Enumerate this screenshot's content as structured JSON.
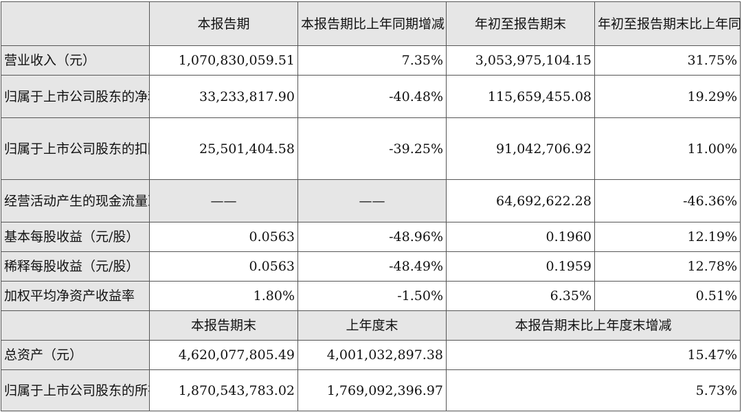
{
  "header": {
    "c0": "",
    "c1": "本报告期",
    "c2": "本报告期比上年同期增减",
    "c3": "年初至报告期末",
    "c4": "年初至报告期末比上年同期增减"
  },
  "rows": [
    {
      "label": "营业收入（元）",
      "v1": "1,070,830,059.51",
      "v2": "7.35%",
      "v3": "3,053,975,104.15",
      "v4": "31.75%"
    },
    {
      "label": "归属于上市公司股东的净利润（元）",
      "v1": "33,233,817.90",
      "v2": "-40.48%",
      "v3": "115,659,455.08",
      "v4": "19.29%"
    },
    {
      "label": "归属于上市公司股东的扣除非经常性损益的净利润（元）",
      "v1": "25,501,404.58",
      "v2": "-39.25%",
      "v3": "91,042,706.92",
      "v4": "11.00%"
    },
    {
      "label": "经营活动产生的现金流量净额（元）",
      "v1": "——",
      "v2": "——",
      "v3": "64,692,622.28",
      "v4": "-46.36%"
    },
    {
      "label": "基本每股收益（元/股）",
      "v1": "0.0563",
      "v2": "-48.96%",
      "v3": "0.1960",
      "v4": "12.19%"
    },
    {
      "label": "稀释每股收益（元/股）",
      "v1": "0.0563",
      "v2": "-48.49%",
      "v3": "0.1959",
      "v4": "12.78%"
    },
    {
      "label": "加权平均净资产收益率",
      "v1": "1.80%",
      "v2": "-1.50%",
      "v3": "6.35%",
      "v4": "0.51%"
    }
  ],
  "header2": {
    "c0": "",
    "c1": "本报告期末",
    "c2": "上年度末",
    "c3": "本报告期末比上年度末增减"
  },
  "rows2": [
    {
      "label": "总资产（元）",
      "v1": "4,620,077,805.49",
      "v2": "4,001,032,897.38",
      "v3": "15.47%"
    },
    {
      "label": "归属于上市公司股东的所有者权益（元）",
      "v1": "1,870,543,783.02",
      "v2": "1,769,092,396.97",
      "v3": "5.73%"
    }
  ]
}
